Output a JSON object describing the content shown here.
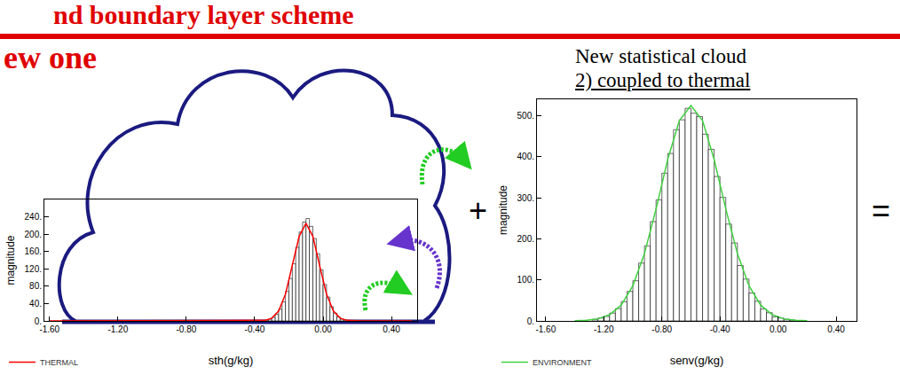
{
  "header": {
    "title": "nd boundary layer scheme",
    "subtitle": "ew one"
  },
  "side_text": {
    "line1": "New statistical cloud",
    "line2": "2) coupled to thermal"
  },
  "operators": {
    "plus": "+",
    "equals": "="
  },
  "chart_data": [
    {
      "type": "histogram",
      "xlabel": "sth(g/kg)",
      "ylabel": "magnitude",
      "color": "#ffffff",
      "bins": [
        -0.36,
        -0.34,
        -0.32,
        -0.3,
        -0.28,
        -0.26,
        -0.24,
        -0.22,
        -0.2,
        -0.18,
        -0.16,
        -0.14,
        -0.12,
        -0.1,
        -0.08,
        -0.06,
        -0.04,
        -0.02,
        0,
        0.02,
        0.04,
        0.06,
        0.08,
        0.1,
        0.12,
        0.14
      ],
      "counts": [
        1,
        2,
        4,
        8,
        15,
        27,
        44,
        68,
        98,
        132,
        170,
        205,
        228,
        236,
        218,
        190,
        155,
        118,
        84,
        55,
        33,
        18,
        9,
        4,
        2
      ],
      "series": [
        {
          "name": "THERMAL",
          "type": "line",
          "color": "#ff0000",
          "x": [
            -1.6,
            -0.42,
            -0.38,
            -0.34,
            -0.3,
            -0.26,
            -0.22,
            -0.18,
            -0.14,
            -0.1,
            -0.06,
            -0.02,
            0.02,
            0.06,
            0.1,
            0.14,
            0.18,
            0.22,
            0.52
          ],
          "values": [
            0,
            0,
            0.2,
            1.3,
            6.4,
            23,
            62,
            127,
            195,
            225,
            195,
            127,
            62,
            23,
            6.4,
            1.3,
            0.2,
            0,
            0
          ]
        }
      ],
      "xlim": [
        -1.63,
        0.55
      ],
      "ylim": [
        0,
        280
      ],
      "xticks": [
        {
          "value": -1.6,
          "label": "-1.60"
        },
        {
          "value": -1.2,
          "label": "-1.20"
        },
        {
          "value": -0.8,
          "label": "-0.80"
        },
        {
          "value": -0.4,
          "label": "-0.40"
        },
        {
          "value": 0,
          "label": "0.00"
        },
        {
          "value": 0.4,
          "label": "0.40"
        }
      ],
      "yticks": [
        {
          "value": 0,
          "label": "0."
        },
        {
          "value": 40,
          "label": "40."
        },
        {
          "value": 80,
          "label": "80."
        },
        {
          "value": 120,
          "label": "120."
        },
        {
          "value": 160,
          "label": "160."
        },
        {
          "value": 200,
          "label": "200."
        },
        {
          "value": 240,
          "label": "240."
        }
      ],
      "legend": "bottom left",
      "grid": false
    },
    {
      "type": "histogram",
      "xlabel": "senv(g/kg)",
      "ylabel": "magnitude",
      "color": "#ffffff",
      "bins": [
        -1.28,
        -1.24,
        -1.2,
        -1.16,
        -1.12,
        -1.08,
        -1.04,
        -1.0,
        -0.96,
        -0.92,
        -0.88,
        -0.84,
        -0.8,
        -0.76,
        -0.72,
        -0.68,
        -0.64,
        -0.6,
        -0.56,
        -0.52,
        -0.48,
        -0.44,
        -0.4,
        -0.36,
        -0.32,
        -0.28,
        -0.24,
        -0.2,
        -0.16,
        -0.12,
        -0.08,
        -0.04,
        0,
        0.04,
        0.08,
        0.12
      ],
      "counts": [
        4,
        7,
        11,
        19,
        30,
        47,
        72,
        98,
        141,
        183,
        242,
        295,
        360,
        408,
        466,
        490,
        518,
        506,
        498,
        455,
        418,
        352,
        301,
        236,
        190,
        135,
        102,
        68,
        48,
        29,
        20,
        10,
        7,
        4,
        2
      ],
      "series": [
        {
          "name": "ENVIRONMENT",
          "type": "line",
          "color": "#3fd13f",
          "x": [
            -1.4,
            -1.32,
            -1.24,
            -1.16,
            -1.08,
            -1.0,
            -0.92,
            -0.84,
            -0.76,
            -0.68,
            -0.6,
            -0.52,
            -0.44,
            -0.36,
            -0.28,
            -0.2,
            -0.12,
            -0.04,
            0.04,
            0.12,
            0.2
          ],
          "values": [
            0.4,
            1.5,
            5.1,
            15,
            38.5,
            85.5,
            164,
            273,
            393,
            488,
            525,
            488,
            393,
            273,
            164,
            85.5,
            38.5,
            15,
            5.1,
            1.5,
            0.4
          ]
        }
      ],
      "xlim": [
        -1.66,
        0.54
      ],
      "ylim": [
        0,
        540
      ],
      "xticks": [
        {
          "value": -1.6,
          "label": "-1.60"
        },
        {
          "value": -1.2,
          "label": "-1.20"
        },
        {
          "value": -0.8,
          "label": "-0.80"
        },
        {
          "value": -0.4,
          "label": "-0.40"
        },
        {
          "value": 0,
          "label": "0.00"
        },
        {
          "value": 0.4,
          "label": "0.40"
        }
      ],
      "yticks": [
        {
          "value": 0,
          "label": "0."
        },
        {
          "value": 100,
          "label": "100."
        },
        {
          "value": 200,
          "label": "200."
        },
        {
          "value": 300,
          "label": "300."
        },
        {
          "value": 400,
          "label": "400."
        },
        {
          "value": 500,
          "label": "500."
        }
      ],
      "legend": "bottom left",
      "grid": false
    }
  ]
}
